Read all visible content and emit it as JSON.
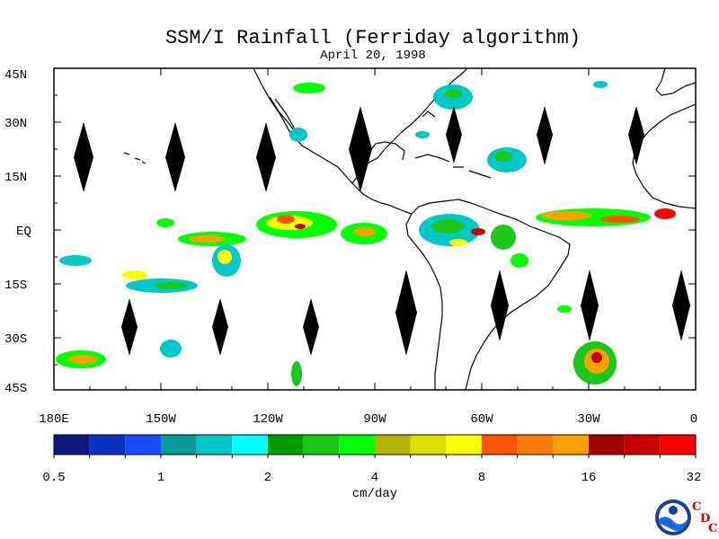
{
  "title": "SSM/I Rainfall (Ferriday algorithm)",
  "date": "April 20, 1998",
  "lat_labels": [
    "45N",
    "30N",
    "15N",
    "EQ",
    "15S",
    "30S",
    "45S"
  ],
  "lon_labels": [
    "180E",
    "150W",
    "120W",
    "90W",
    "60W",
    "30W",
    "0"
  ],
  "colorbar": {
    "unit": "cm/day",
    "tick_labels": [
      "0.5",
      "1",
      "2",
      "4",
      "8",
      "16",
      "32"
    ],
    "colors": [
      "#0b1a7a",
      "#0a34c0",
      "#1a4cff",
      "#0a9a9a",
      "#00c8c8",
      "#00ffff",
      "#009a00",
      "#19c819",
      "#00ff00",
      "#b4b400",
      "#dcdc00",
      "#ffff00",
      "#ff5500",
      "#ff7a00",
      "#ffa000",
      "#a00000",
      "#c80000",
      "#ff0000"
    ]
  },
  "logo": {
    "name": "NOAA",
    "letters": [
      "C",
      "D",
      "C"
    ]
  },
  "colors": {
    "land_outline": "#000000",
    "background": "#ffffff"
  }
}
